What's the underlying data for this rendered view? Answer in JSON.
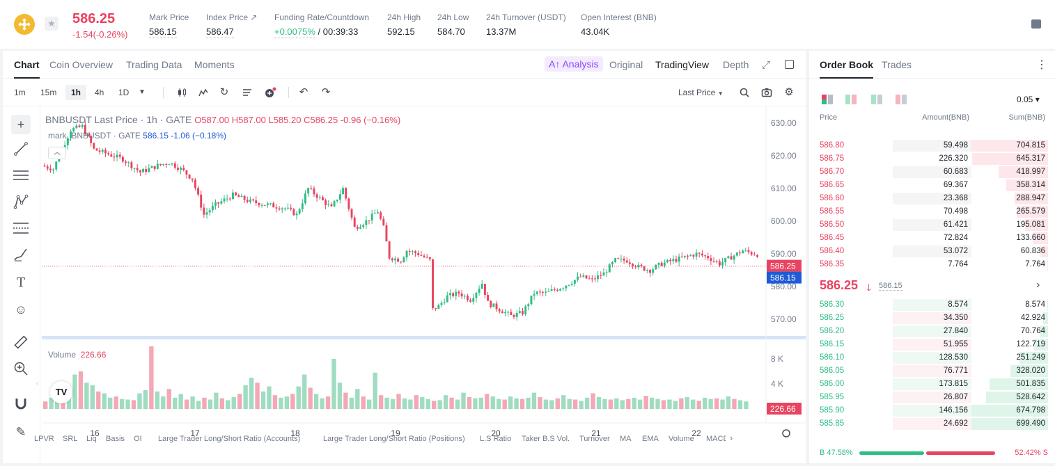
{
  "header": {
    "last_price": "586.25",
    "change": "-1.54(-0.26%)",
    "stats": [
      {
        "label": "Mark Price",
        "value": "586.15"
      },
      {
        "label": "Index Price ↗",
        "value": "586.47"
      },
      {
        "label": "Funding Rate/Countdown",
        "value_green": "+0.0075%",
        "value": " / 00:39:33"
      },
      {
        "label": "24h High",
        "value": "592.15"
      },
      {
        "label": "24h Low",
        "value": "584.70"
      },
      {
        "label": "24h Turnover (USDT)",
        "value": "13.37M"
      },
      {
        "label": "Open Interest (BNB)",
        "value": "43.04K"
      }
    ]
  },
  "chart_tabs": [
    "Chart",
    "Coin Overview",
    "Trading Data",
    "Moments"
  ],
  "ai_analysis": "A↑ Analysis",
  "views": [
    "Original",
    "TradingView",
    "Depth"
  ],
  "timeframes": [
    "1m",
    "15m",
    "1h",
    "4h",
    "1D"
  ],
  "price_source": "Last Price",
  "legend": {
    "title": "BNBUSDT Last Price · 1h · GATE",
    "ohlc": "O587.00  H587.00  L585.20  C586.25  -0.96 (−0.16%)",
    "mark": "mark_BNBUSDT · GATE",
    "mark_vals": "586.15  -1.06 (−0.18%)"
  },
  "volume_legend": {
    "label": "Volume",
    "value": "226.66"
  },
  "indicators": [
    "LPVR",
    "SRL",
    "Liq",
    "Basis",
    "OI",
    "Large Trader Long/Short Ratio (Accounts)",
    "Large Trader Long/Short Ratio (Positions)",
    "L.S Ratio",
    "Taker B.S Vol.",
    "Turnover",
    "MA",
    "EMA",
    "Volume",
    "MACD"
  ],
  "chart_data": {
    "type": "candlestick",
    "x_tick_labels": [
      "16",
      "17",
      "18",
      "19",
      "20",
      "21",
      "22"
    ],
    "y_ticks": [
      570,
      580,
      590,
      600,
      610,
      620,
      630
    ],
    "ylim": [
      567,
      633
    ],
    "volume_ticks": [
      "4 K",
      "8 K"
    ],
    "volume_ylim": [
      0,
      10000
    ],
    "last_price_label": "586.25",
    "mark_price_label": "586.15",
    "volume_label": "226.66",
    "path": [
      [
        0,
        617
      ],
      [
        4,
        616
      ],
      [
        10,
        628
      ],
      [
        14,
        629
      ],
      [
        18,
        622
      ],
      [
        28,
        619
      ],
      [
        34,
        615
      ],
      [
        40,
        617
      ],
      [
        44,
        618
      ],
      [
        48,
        616
      ],
      [
        52,
        613
      ],
      [
        56,
        602
      ],
      [
        60,
        605
      ],
      [
        66,
        608
      ],
      [
        72,
        606
      ],
      [
        78,
        605
      ],
      [
        84,
        604
      ],
      [
        88,
        602
      ],
      [
        92,
        610
      ],
      [
        96,
        607
      ],
      [
        100,
        604
      ],
      [
        104,
        610
      ],
      [
        108,
        598
      ],
      [
        112,
        600
      ],
      [
        116,
        603
      ],
      [
        118,
        598
      ],
      [
        120,
        589
      ],
      [
        124,
        588
      ],
      [
        126,
        591
      ],
      [
        130,
        590
      ],
      [
        134,
        588
      ],
      [
        135,
        573
      ],
      [
        137,
        574
      ],
      [
        140,
        577
      ],
      [
        144,
        578
      ],
      [
        148,
        576
      ],
      [
        152,
        581
      ],
      [
        154,
        575
      ],
      [
        158,
        573
      ],
      [
        162,
        571
      ],
      [
        166,
        572
      ],
      [
        170,
        578
      ],
      [
        174,
        578
      ],
      [
        180,
        580
      ],
      [
        186,
        583
      ],
      [
        190,
        582
      ],
      [
        194,
        584
      ],
      [
        198,
        588
      ],
      [
        202,
        588
      ],
      [
        206,
        586
      ],
      [
        210,
        585
      ],
      [
        214,
        587
      ],
      [
        218,
        588
      ],
      [
        222,
        589
      ],
      [
        226,
        590
      ],
      [
        230,
        589
      ],
      [
        234,
        587
      ],
      [
        238,
        589
      ],
      [
        242,
        591
      ],
      [
        246,
        590
      ],
      [
        250,
        589.5
      ],
      [
        253,
        586.25
      ]
    ],
    "volumes": [
      1200,
      1800,
      1500,
      2200,
      3500,
      5500,
      6000,
      4200,
      3800,
      2800,
      2500,
      1800,
      2000,
      1600,
      1500,
      1400,
      2500,
      3000,
      10000,
      2800,
      2000,
      3200,
      1800,
      2400,
      1500,
      2000,
      1300,
      1800,
      1500,
      2600,
      1700,
      1400,
      1900,
      2400,
      3800,
      5000,
      4200,
      2800,
      3600,
      2200,
      1800,
      2000,
      2400,
      3600,
      5500,
      3400,
      2400,
      1700,
      2000,
      8000,
      4200,
      2600,
      1800,
      3200,
      2000,
      1500,
      5800,
      2200,
      1800,
      1600,
      2400,
      1700,
      1500,
      2200,
      1900,
      1600,
      1300,
      1400,
      2200,
      1800,
      1500,
      2600,
      1900,
      1700,
      1800,
      2400,
      2000,
      1600,
      1500,
      2000,
      1700,
      1600,
      1800,
      2600,
      1900,
      1500,
      1400,
      1700,
      2200,
      1600,
      1500,
      1300,
      1800,
      2500,
      1900,
      1600,
      1500,
      1700,
      1400,
      1600,
      1800,
      1500,
      2100,
      1800,
      1600,
      1400,
      1500,
      1300,
      1700,
      1900,
      1500,
      1300,
      1800,
      1600,
      1700,
      1500,
      2000,
      1600,
      1400,
      1200
    ]
  },
  "order_book": {
    "tabs": [
      "Order Book",
      "Trades"
    ],
    "tick": "0.05 ▾",
    "headers": [
      "Price",
      "Amount(BNB)",
      "Sum(BNB)"
    ],
    "asks": [
      {
        "price": "586.80",
        "amount": "59.498",
        "sum": "704.815",
        "sum_frac": 1.0,
        "amt_frac": 0.0
      },
      {
        "price": "586.75",
        "amount": "226.320",
        "sum": "645.317",
        "sum_frac": 0.92,
        "amt_frac": 0.95
      },
      {
        "price": "586.70",
        "amount": "60.683",
        "sum": "418.997",
        "sum_frac": 0.6,
        "amt_frac": 0.0
      },
      {
        "price": "586.65",
        "amount": "69.367",
        "sum": "358.314",
        "sum_frac": 0.51,
        "amt_frac": 0.0
      },
      {
        "price": "586.60",
        "amount": "23.368",
        "sum": "288.947",
        "sum_frac": 0.41,
        "amt_frac": 0.0
      },
      {
        "price": "586.55",
        "amount": "70.498",
        "sum": "265.579",
        "sum_frac": 0.38,
        "amt_frac": 0.95
      },
      {
        "price": "586.50",
        "amount": "61.421",
        "sum": "195.081",
        "sum_frac": 0.28,
        "amt_frac": 0.0
      },
      {
        "price": "586.45",
        "amount": "72.824",
        "sum": "133.660",
        "sum_frac": 0.19,
        "amt_frac": 0.0
      },
      {
        "price": "586.40",
        "amount": "53.072",
        "sum": "60.836",
        "sum_frac": 0.09,
        "amt_frac": 0.0
      },
      {
        "price": "586.35",
        "amount": "7.764",
        "sum": "7.764",
        "sum_frac": 0.01,
        "amt_frac": 0.0
      }
    ],
    "mid": {
      "price": "586.25",
      "mark": "586.15"
    },
    "bids": [
      {
        "price": "586.30",
        "amount": "8.574",
        "sum": "8.574",
        "sum_frac": 0.01
      },
      {
        "price": "586.25",
        "amount": "34.350",
        "sum": "42.924",
        "sum_frac": 0.06
      },
      {
        "price": "586.20",
        "amount": "27.840",
        "sum": "70.764",
        "sum_frac": 0.1
      },
      {
        "price": "586.15",
        "amount": "51.955",
        "sum": "122.719",
        "sum_frac": 0.17
      },
      {
        "price": "586.10",
        "amount": "128.530",
        "sum": "251.249",
        "sum_frac": 0.35
      },
      {
        "price": "586.05",
        "amount": "76.771",
        "sum": "328.020",
        "sum_frac": 0.46
      },
      {
        "price": "586.00",
        "amount": "173.815",
        "sum": "501.835",
        "sum_frac": 0.71
      },
      {
        "price": "585.95",
        "amount": "26.807",
        "sum": "528.642",
        "sum_frac": 0.75
      },
      {
        "price": "585.90",
        "amount": "146.156",
        "sum": "674.798",
        "sum_frac": 0.95
      },
      {
        "price": "585.85",
        "amount": "24.692",
        "sum": "699.490",
        "sum_frac": 0.99
      }
    ],
    "buy_ratio": "B 47.58%",
    "sell_ratio": "52.42% S",
    "buy_frac": 0.4758
  },
  "colors": {
    "up": "#2ebd85",
    "down": "#e8435f",
    "mark": "#1e5bd6"
  }
}
